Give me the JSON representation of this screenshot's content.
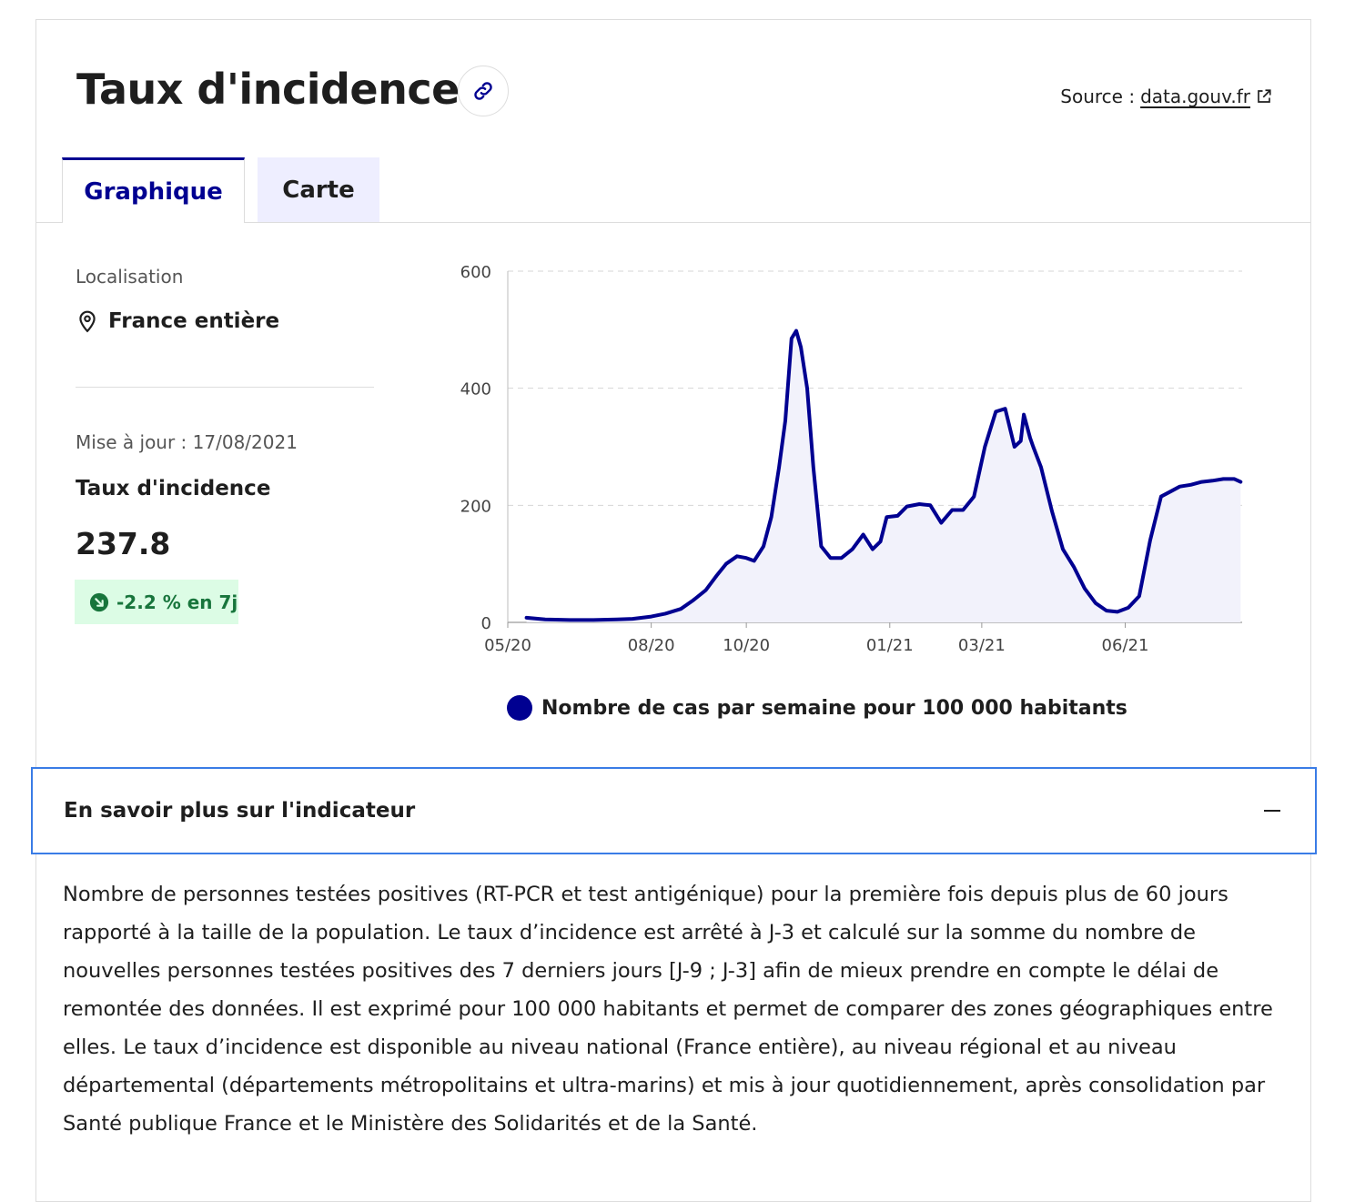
{
  "header": {
    "title": "Taux d'incidence",
    "source_label": "Source :",
    "source_link": "data.gouv.fr"
  },
  "tabs": [
    {
      "label": "Graphique",
      "active": true
    },
    {
      "label": "Carte",
      "active": false
    }
  ],
  "sidebar": {
    "location_label": "Localisation",
    "location_value": "France entière",
    "update_text": "Mise à jour : 17/08/2021",
    "indicator_name": "Taux d'incidence",
    "indicator_value": "237.8",
    "trend_text": "-2.2 % en 7j"
  },
  "colors": {
    "accent": "#000091",
    "badge_bg": "#dcfce5",
    "badge_text": "#18753c",
    "focus_border": "#3a7ce6"
  },
  "chart_data": {
    "type": "area",
    "x_ticks": [
      "05/20",
      "08/20",
      "10/20",
      "01/21",
      "03/21",
      "06/21"
    ],
    "y_ticks": [
      0,
      200,
      400,
      600
    ],
    "ylim": [
      0,
      600
    ],
    "legend": "Nombre de cas par semaine pour 100 000 habitants",
    "series": [
      {
        "name": "Nombre de cas par semaine pour 100 000 habitants",
        "x": [
          "2020-05-13",
          "2020-05-25",
          "2020-06-10",
          "2020-06-25",
          "2020-07-10",
          "2020-07-20",
          "2020-08-01",
          "2020-08-10",
          "2020-08-20",
          "2020-08-28",
          "2020-09-05",
          "2020-09-12",
          "2020-09-18",
          "2020-09-25",
          "2020-10-01",
          "2020-10-06",
          "2020-10-12",
          "2020-10-17",
          "2020-10-22",
          "2020-10-26",
          "2020-10-30",
          "2020-11-02",
          "2020-11-05",
          "2020-11-09",
          "2020-11-13",
          "2020-11-18",
          "2020-11-24",
          "2020-12-01",
          "2020-12-08",
          "2020-12-15",
          "2020-12-21",
          "2020-12-26",
          "2020-12-30",
          "2021-01-06",
          "2021-01-12",
          "2021-01-20",
          "2021-01-27",
          "2021-02-03",
          "2021-02-10",
          "2021-02-17",
          "2021-02-24",
          "2021-03-03",
          "2021-03-10",
          "2021-03-16",
          "2021-03-22",
          "2021-03-26",
          "2021-03-28",
          "2021-04-01",
          "2021-04-03",
          "2021-04-08",
          "2021-04-15",
          "2021-04-22",
          "2021-04-29",
          "2021-05-06",
          "2021-05-13",
          "2021-05-20",
          "2021-05-27",
          "2021-06-03",
          "2021-06-10",
          "2021-06-17",
          "2021-06-24",
          "2021-07-01",
          "2021-07-06",
          "2021-07-13",
          "2021-07-20",
          "2021-07-27",
          "2021-08-03",
          "2021-08-10",
          "2021-08-14"
        ],
        "values": [
          8,
          5,
          4,
          4,
          5,
          6,
          10,
          15,
          23,
          38,
          55,
          80,
          100,
          113,
          110,
          105,
          130,
          180,
          265,
          345,
          485,
          498,
          470,
          400,
          265,
          130,
          110,
          110,
          125,
          150,
          125,
          138,
          180,
          182,
          198,
          202,
          200,
          170,
          192,
          192,
          215,
          300,
          360,
          365,
          300,
          310,
          355,
          315,
          300,
          265,
          190,
          125,
          95,
          58,
          33,
          20,
          18,
          25,
          45,
          140,
          215,
          225,
          232,
          235,
          240,
          242,
          245,
          245,
          240
        ]
      }
    ]
  },
  "accordion": {
    "title": "En savoir plus sur l'indicateur",
    "description": "Nombre de personnes testées positives (RT-PCR et test antigénique) pour la première fois depuis plus de 60 jours rapporté à la taille de la population. Le taux d’incidence est arrêté à J-3 et calculé sur la somme du nombre de nouvelles personnes testées positives des 7 derniers jours [J-9 ; J-3] afin de mieux prendre en compte le délai de remontée des données. Il est exprimé pour 100 000 habitants et permet de comparer des zones géographiques entre elles. Le taux d’incidence est disponible au niveau national (France entière), au niveau régional et au niveau départemental (départements métropolitains et ultra-marins) et mis à jour quotidiennement, après consolidation par Santé publique France et le Ministère des Solidarités et de la Santé."
  }
}
